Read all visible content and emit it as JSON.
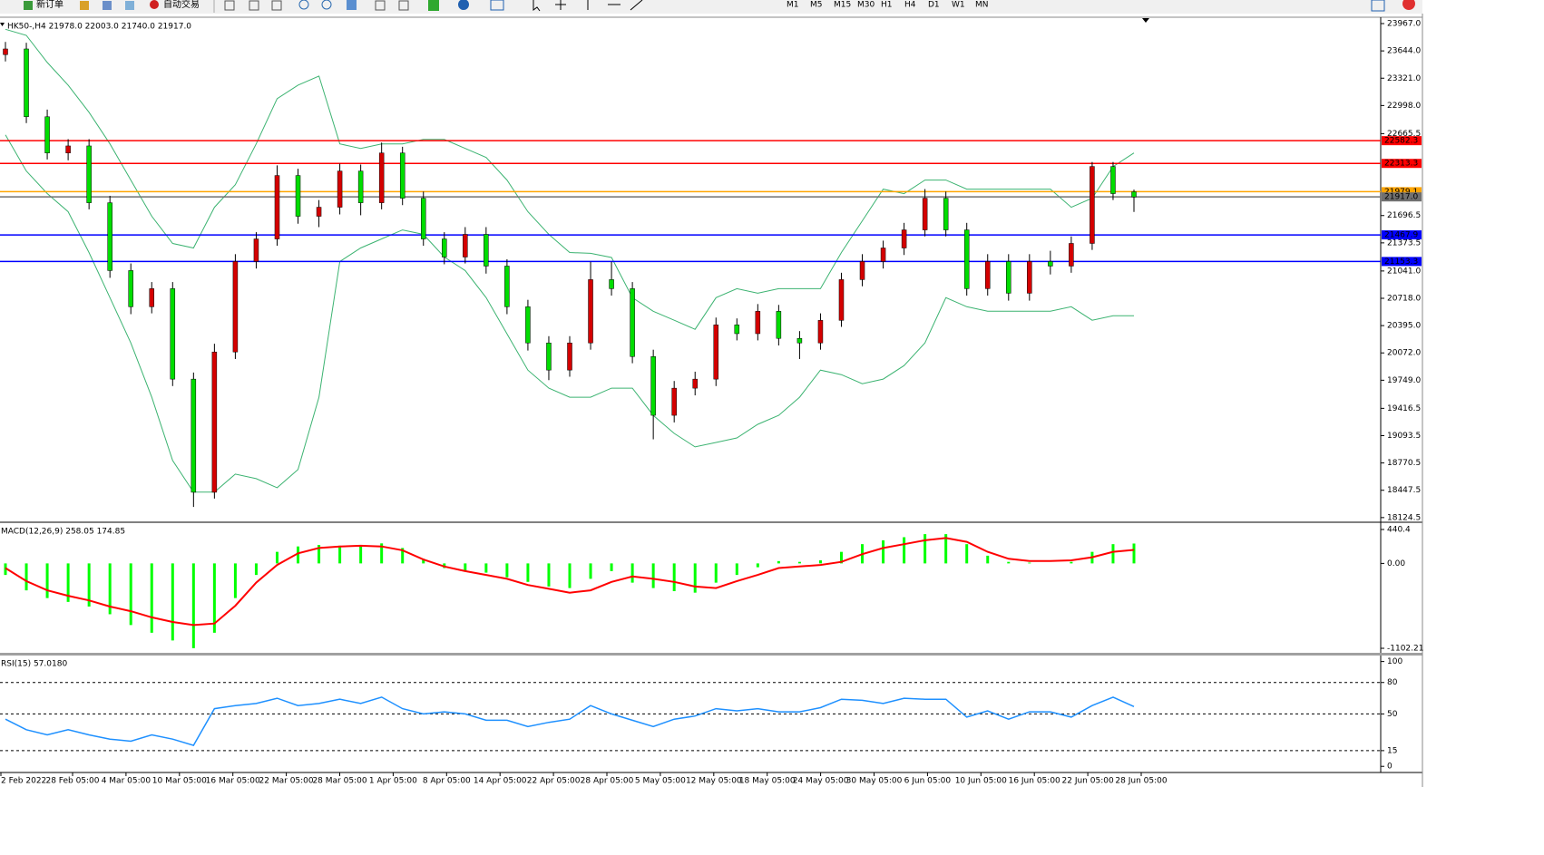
{
  "toolbar": {
    "new_order": "新订单",
    "auto_trading": "自动交易",
    "timeframes": [
      "M1",
      "M5",
      "M15",
      "M30",
      "H1",
      "H4",
      "D1",
      "W1",
      "MN"
    ]
  },
  "time_labels": [
    "2 Feb 2022",
    "28 Feb 05:00",
    "4 Mar 05:00",
    "10 Mar 05:00",
    "16 Mar 05:00",
    "22 Mar 05:00",
    "28 Mar 05:00",
    "1 Apr 05:00",
    "8 Apr 05:00",
    "14 Apr 05:00",
    "22 Apr 05:00",
    "28 Apr 05:00",
    "5 May 05:00",
    "12 May 05:00",
    "18 May 05:00",
    "24 May 05:00",
    "30 May 05:00",
    "6 Jun 05:00",
    "10 Jun 05:00",
    "16 Jun 05:00",
    "22 Jun 05:00",
    "28 Jun 05:00"
  ],
  "chart_data": [
    {
      "type": "candlestick",
      "title": "HK50-,H4  21978.0 22003.0 21740.0 21917.0",
      "open": [
        23600,
        23667,
        22865,
        22437,
        22520,
        21848,
        21046,
        20618,
        20832,
        19762,
        18424,
        20083,
        21153,
        21420,
        22170,
        21688,
        21795,
        22223,
        21848,
        22437,
        21902,
        21420,
        21206,
        21474,
        21099,
        20618,
        20190,
        19869,
        20190,
        20939,
        20832,
        20029,
        19334,
        19655,
        19762,
        20404,
        20300,
        20564,
        20244,
        20190,
        20457,
        20939,
        21153,
        21313,
        21527,
        21902,
        21527,
        20832,
        21153,
        20778,
        21153,
        21099,
        21367,
        22277,
        21978
      ],
      "high": [
        23750,
        23740,
        22950,
        22600,
        22600,
        21930,
        21130,
        20910,
        20910,
        19840,
        20180,
        21240,
        21500,
        22290,
        22250,
        21880,
        22310,
        22300,
        22560,
        22510,
        21980,
        21500,
        21560,
        21560,
        21180,
        20700,
        20270,
        20270,
        21150,
        21150,
        20910,
        20110,
        19740,
        19850,
        20490,
        20480,
        20650,
        20640,
        20330,
        20540,
        21020,
        21240,
        21400,
        21610,
        22010,
        21980,
        21610,
        21240,
        21240,
        21240,
        21280,
        21450,
        22330,
        22330,
        22003
      ],
      "low": [
        23520,
        22790,
        22360,
        22350,
        21770,
        20960,
        20530,
        20540,
        19680,
        18250,
        18350,
        20000,
        21070,
        21340,
        21600,
        21560,
        21710,
        21700,
        21770,
        21820,
        21340,
        21120,
        21130,
        21010,
        20530,
        20100,
        19750,
        19790,
        20110,
        20750,
        19950,
        19050,
        19250,
        19570,
        19680,
        20220,
        20220,
        20160,
        20000,
        20110,
        20380,
        20860,
        21070,
        21230,
        21450,
        21450,
        20750,
        20750,
        20690,
        20690,
        21000,
        21020,
        21290,
        21880,
        21740
      ],
      "close": [
        23667,
        22865,
        22437,
        22520,
        21848,
        21046,
        20618,
        20832,
        19762,
        18424,
        20083,
        21153,
        21420,
        22170,
        21688,
        21795,
        22223,
        21848,
        22437,
        21902,
        21420,
        21206,
        21474,
        21099,
        20618,
        20190,
        19869,
        20190,
        20939,
        20832,
        20029,
        19334,
        19655,
        19762,
        20404,
        20300,
        20564,
        20244,
        20190,
        20457,
        20939,
        21153,
        21313,
        21527,
        21902,
        21527,
        20832,
        21153,
        20778,
        21153,
        21099,
        21367,
        22277,
        21956,
        21917
      ],
      "up_color": "#d40000",
      "down_color": "#00dd00",
      "bands": [
        {
          "color": "#3cb371",
          "values": [
            23900,
            23828,
            23507,
            23239,
            22918,
            22544,
            22116,
            21688,
            21367,
            21313,
            21795,
            22062,
            22544,
            23079,
            23239,
            23346,
            22544,
            22490,
            22544,
            22544,
            22597,
            22597,
            22490,
            22383,
            22116,
            21742,
            21474,
            21260,
            21250,
            21200,
            20725,
            20565,
            20458,
            20351,
            20725,
            20832,
            20778,
            20832,
            20832,
            20832,
            21260,
            21634,
            22009,
            21955,
            22116,
            22116,
            22009,
            22009,
            22009,
            22009,
            22009,
            21795,
            21902,
            22276,
            22437
          ]
        },
        {
          "color": "#3cb371",
          "values": [
            22651,
            22223,
            21956,
            21742,
            21260,
            20725,
            20190,
            19548,
            18799,
            18425,
            18425,
            18639,
            18585,
            18478,
            18692,
            19548,
            21153,
            21313,
            21420,
            21527,
            21474,
            21206,
            21046,
            20725,
            20297,
            19869,
            19655,
            19548,
            19548,
            19655,
            19655,
            19334,
            19120,
            18960,
            19013,
            19067,
            19227,
            19334,
            19548,
            19869,
            19815,
            19708,
            19762,
            19922,
            20190,
            20725,
            20618,
            20565,
            20565,
            20565,
            20565,
            20618,
            20458,
            20511,
            20511
          ]
        }
      ],
      "levels": [
        {
          "value": 22582.3,
          "color": "#ff0000"
        },
        {
          "value": 22313.3,
          "color": "#ff0000"
        },
        {
          "value": 21979.1,
          "color": "#ffa500"
        },
        {
          "value": 21917,
          "label": "21917.0",
          "color": "#707070"
        },
        {
          "value": 21467.9,
          "color": "#0000ff"
        },
        {
          "value": 21153.3,
          "color": "#0000ff"
        }
      ],
      "ylim": [
        18080,
        24010
      ],
      "yticks": [
        {
          "value": 23967,
          "label": "23967.0"
        },
        {
          "value": 23644,
          "label": "23644.0"
        },
        {
          "value": 23321,
          "label": "23321.0"
        },
        {
          "value": 22998,
          "label": "22998.0"
        },
        22665.5,
        21696.5,
        21373.5,
        {
          "value": 21041,
          "label": "21041.0"
        },
        {
          "value": 20718,
          "label": "20718.0"
        },
        {
          "value": 20395,
          "label": "20395.0"
        },
        {
          "value": 20072,
          "label": "20072.0"
        },
        {
          "value": 19749,
          "label": "19749.0"
        },
        19416.5,
        19093.5,
        18770.5,
        18447.5,
        18124.5
      ]
    },
    {
      "type": "macd",
      "title": "MACD(12,26,9) 258.05 174.85",
      "histogram": {
        "color": "#00ff00",
        "values": [
          -150,
          -350,
          -450,
          -500,
          -560,
          -660,
          -800,
          -900,
          -1000,
          -1100,
          -900,
          -450,
          -150,
          150,
          220,
          240,
          230,
          240,
          260,
          200,
          60,
          -60,
          -100,
          -120,
          -180,
          -240,
          -300,
          -320,
          -200,
          -100,
          -250,
          -320,
          -360,
          -380,
          -250,
          -150,
          -50,
          30,
          20,
          40,
          150,
          250,
          300,
          340,
          380,
          380,
          250,
          100,
          20,
          10,
          0,
          20,
          150,
          250,
          258.05
        ]
      },
      "signal": {
        "color": "#ff0000",
        "values": [
          -60,
          -230,
          -350,
          -420,
          -480,
          -560,
          -620,
          -700,
          -760,
          -800,
          -780,
          -550,
          -250,
          -20,
          130,
          200,
          220,
          230,
          220,
          170,
          50,
          -40,
          -100,
          -150,
          -200,
          -280,
          -330,
          -380,
          -350,
          -240,
          -170,
          -200,
          -240,
          -300,
          -320,
          -230,
          -150,
          -60,
          -40,
          -20,
          20,
          120,
          200,
          250,
          300,
          330,
          280,
          150,
          60,
          30,
          30,
          40,
          80,
          150,
          174.85
        ]
      },
      "ylim": [
        -1149,
        499
      ],
      "yticks": [
        440.4,
        {
          "value": 0,
          "label": "0.00"
        },
        -1102.21
      ]
    },
    {
      "type": "line",
      "title": "RSI(15) 57.0180",
      "color": "#1e90ff",
      "values": [
        45,
        35,
        30,
        35,
        30,
        26,
        24,
        30,
        26,
        20,
        55,
        58,
        60,
        65,
        58,
        60,
        64,
        60,
        66,
        55,
        50,
        52,
        50,
        44,
        44,
        38,
        42,
        45,
        58,
        50,
        44,
        38,
        45,
        48,
        55,
        53,
        55,
        52,
        52,
        56,
        64,
        63,
        60,
        65,
        64,
        64,
        47,
        53,
        45,
        52,
        52,
        47,
        58,
        66,
        57.018
      ],
      "levels": [
        80,
        50,
        15
      ],
      "ylim": [
        -5,
        104
      ],
      "yticks": [
        100,
        80,
        50,
        15,
        0
      ]
    }
  ]
}
